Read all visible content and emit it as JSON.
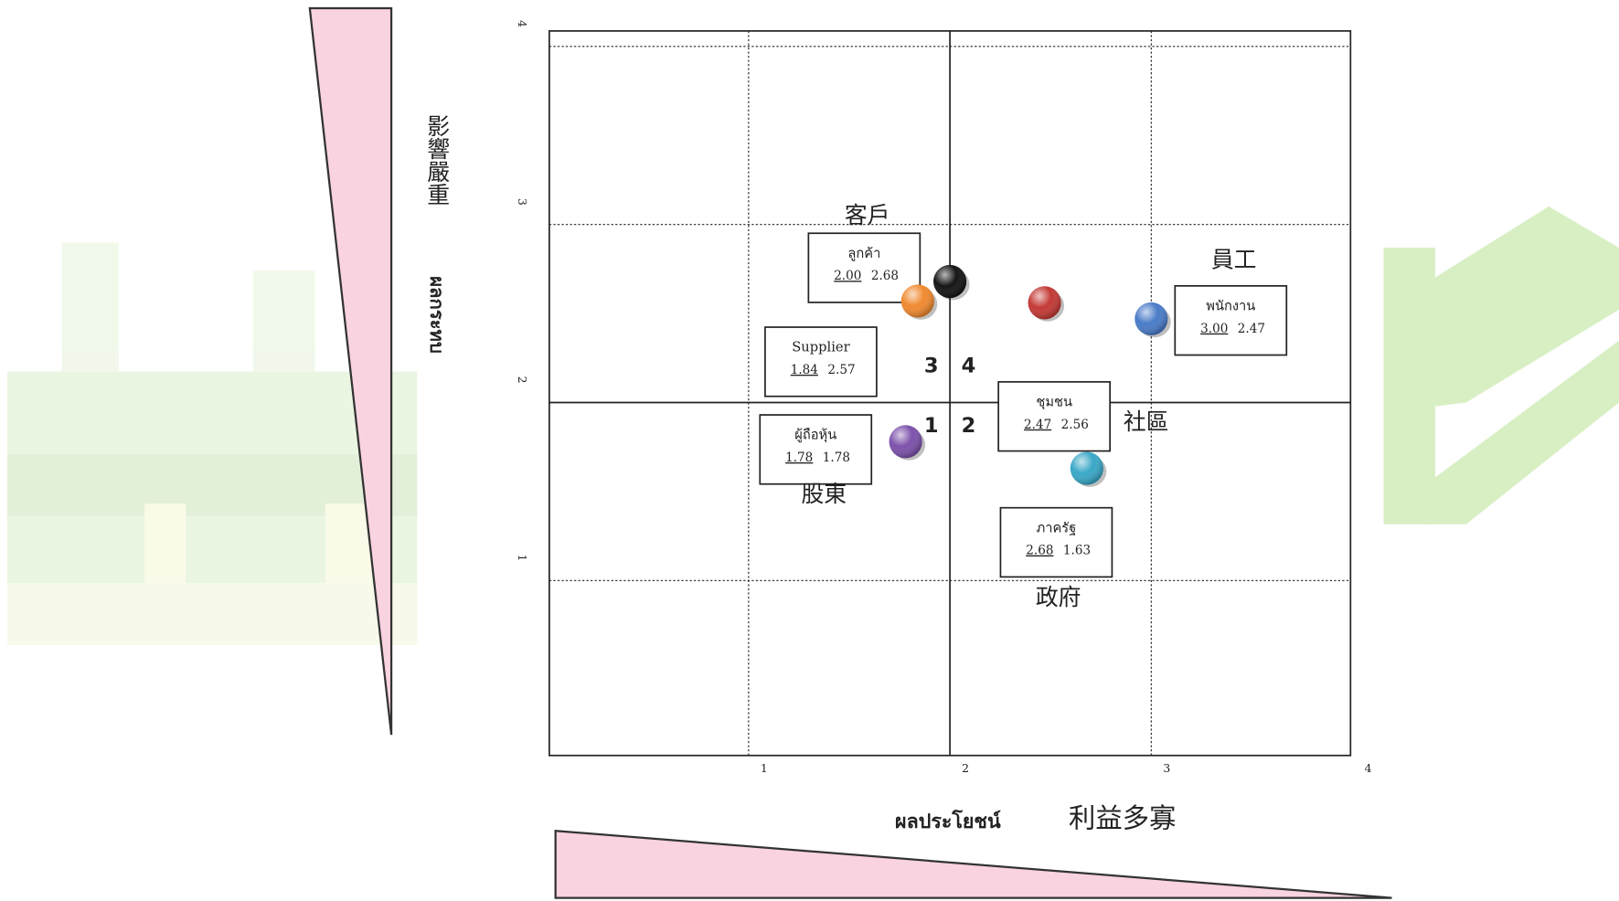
{
  "chart_data": {
    "type": "scatter",
    "x_label": "ผลประโยชน์",
    "x_label_translation": "利益多寡",
    "y_label": "ผลกระทบ",
    "y_label_translation": "影響嚴重",
    "xlim": [
      0,
      4
    ],
    "ylim": [
      0,
      4
    ],
    "xticks": [
      1,
      2,
      3,
      4
    ],
    "yticks": [
      1,
      2,
      3,
      4
    ],
    "grid": true,
    "quadrants": [
      "1",
      "2",
      "3",
      "4"
    ],
    "series": [
      {
        "name": "ลูกค้า",
        "translation": "客戶",
        "color": "#151515",
        "x": [
          2.0
        ],
        "values": [
          2.68
        ],
        "x_value_labels": [
          "2.00"
        ],
        "value_labels": [
          "2.68"
        ]
      },
      {
        "name": "พนักงาน",
        "translation": "員工",
        "color": "#4a7cc8",
        "x": [
          3.0
        ],
        "values": [
          2.47
        ],
        "x_value_labels": [
          "3.00"
        ],
        "value_labels": [
          "2.47"
        ]
      },
      {
        "name": "Supplier",
        "color": "#f08a30",
        "x": [
          1.84
        ],
        "values": [
          2.57
        ],
        "x_value_labels": [
          "1.84"
        ],
        "value_labels": [
          "2.57"
        ]
      },
      {
        "name": "ชุมชน",
        "translation": "社區",
        "color": "#c43a36",
        "x": [
          2.47
        ],
        "values": [
          2.56
        ],
        "x_value_labels": [
          "2.47"
        ],
        "value_labels": [
          "2.56"
        ]
      },
      {
        "name": "ผู้ถือหุ้น",
        "translation": "股東",
        "color": "#7d52ab",
        "x": [
          1.78
        ],
        "values": [
          1.78
        ],
        "x_value_labels": [
          "1.78"
        ],
        "value_labels": [
          "1.78"
        ]
      },
      {
        "name": "ภาครัฐ",
        "translation": "政府",
        "color": "#3aa8c8",
        "x": [
          2.68
        ],
        "values": [
          1.63
        ],
        "x_value_labels": [
          "2.68"
        ],
        "value_labels": [
          "1.63"
        ]
      }
    ]
  }
}
